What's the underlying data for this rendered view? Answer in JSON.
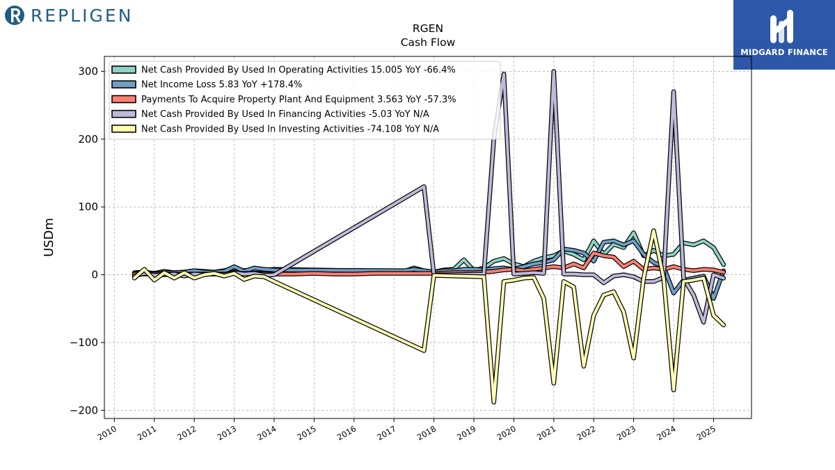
{
  "header": {
    "company_name": "REPLIGEN",
    "brand_name": "MIDGARD FINANCE"
  },
  "colors": {
    "company": "#1f5d86",
    "brand_background": "#2d57a8"
  },
  "chart_data": {
    "type": "line",
    "title": "RGEN",
    "subtitle": "Cash Flow",
    "xlabel": "",
    "ylabel": "USDm",
    "xlim": [
      2009.75,
      2025.95
    ],
    "ylim": [
      -212,
      322
    ],
    "yticks": [
      -200,
      -100,
      0,
      100,
      200,
      300
    ],
    "ytick_labels": [
      "−200",
      "−100",
      "0",
      "100",
      "200",
      "300"
    ],
    "xticks": [
      2010,
      2011,
      2012,
      2013,
      2014,
      2015,
      2016,
      2017,
      2018,
      2019,
      2020,
      2021,
      2022,
      2023,
      2024,
      2025
    ],
    "grid": true,
    "legend_position": "top-left",
    "series": [
      {
        "name": "Net Cash Provided By Used In Operating Activities",
        "legend": "Net Cash Provided By Used In Operating Activities  15.005 YoY -66.4%",
        "color": "#8dd3c7",
        "points": [
          [
            2010.5,
            3
          ],
          [
            2010.75,
            4
          ],
          [
            2011.0,
            2
          ],
          [
            2011.25,
            5
          ],
          [
            2011.5,
            3
          ],
          [
            2011.75,
            4
          ],
          [
            2012.0,
            6
          ],
          [
            2012.25,
            5
          ],
          [
            2012.5,
            4
          ],
          [
            2012.75,
            6
          ],
          [
            2013.0,
            10
          ],
          [
            2013.25,
            6
          ],
          [
            2013.5,
            8
          ],
          [
            2013.75,
            7
          ],
          [
            2014.0,
            8
          ],
          [
            2017.25,
            5
          ],
          [
            2017.5,
            10
          ],
          [
            2017.75,
            6
          ],
          [
            2018.0,
            4
          ],
          [
            2018.25,
            7
          ],
          [
            2018.5,
            8
          ],
          [
            2018.75,
            22
          ],
          [
            2019.0,
            6
          ],
          [
            2019.25,
            10
          ],
          [
            2019.5,
            20
          ],
          [
            2019.75,
            24
          ],
          [
            2020.0,
            16
          ],
          [
            2020.25,
            12
          ],
          [
            2020.5,
            20
          ],
          [
            2020.75,
            25
          ],
          [
            2021.0,
            28
          ],
          [
            2021.25,
            35
          ],
          [
            2021.5,
            30
          ],
          [
            2021.75,
            22
          ],
          [
            2022.0,
            50
          ],
          [
            2022.25,
            30
          ],
          [
            2022.5,
            45
          ],
          [
            2022.75,
            40
          ],
          [
            2023.0,
            62
          ],
          [
            2023.25,
            28
          ],
          [
            2023.5,
            36
          ],
          [
            2023.75,
            28
          ],
          [
            2024.0,
            30
          ],
          [
            2024.25,
            47
          ],
          [
            2024.5,
            44
          ],
          [
            2024.75,
            50
          ],
          [
            2025.0,
            40
          ],
          [
            2025.25,
            15.005
          ]
        ]
      },
      {
        "name": "Net Income Loss",
        "legend": "Net Income Loss  5.83 YoY +178.4%",
        "color": "#6f9fc6",
        "points": [
          [
            2010.5,
            2
          ],
          [
            2010.75,
            3
          ],
          [
            2011.0,
            2
          ],
          [
            2011.25,
            3
          ],
          [
            2011.5,
            3
          ],
          [
            2011.75,
            4
          ],
          [
            2012.0,
            6
          ],
          [
            2012.25,
            4
          ],
          [
            2012.5,
            4
          ],
          [
            2012.75,
            5
          ],
          [
            2013.0,
            12
          ],
          [
            2013.25,
            5
          ],
          [
            2013.5,
            10
          ],
          [
            2013.75,
            8
          ],
          [
            2014.0,
            7
          ],
          [
            2017.25,
            6
          ],
          [
            2017.5,
            8
          ],
          [
            2017.75,
            6
          ],
          [
            2018.0,
            4
          ],
          [
            2018.25,
            6
          ],
          [
            2018.5,
            6
          ],
          [
            2018.75,
            8
          ],
          [
            2019.0,
            8
          ],
          [
            2019.25,
            7
          ],
          [
            2019.5,
            9
          ],
          [
            2019.75,
            10
          ],
          [
            2020.0,
            8
          ],
          [
            2020.25,
            12
          ],
          [
            2020.5,
            16
          ],
          [
            2020.75,
            18
          ],
          [
            2021.0,
            22
          ],
          [
            2021.25,
            38
          ],
          [
            2021.5,
            36
          ],
          [
            2021.75,
            32
          ],
          [
            2022.0,
            20
          ],
          [
            2022.25,
            48
          ],
          [
            2022.5,
            50
          ],
          [
            2022.75,
            44
          ],
          [
            2023.0,
            50
          ],
          [
            2023.25,
            30
          ],
          [
            2023.5,
            18
          ],
          [
            2023.75,
            12
          ],
          [
            2024.0,
            -27
          ],
          [
            2024.25,
            -8
          ],
          [
            2024.5,
            -5
          ],
          [
            2024.75,
            -2
          ],
          [
            2025.0,
            -35
          ],
          [
            2025.25,
            5.83
          ]
        ]
      },
      {
        "name": "Payments To Acquire Property Plant And Equipment",
        "legend": "Payments To Acquire Property Plant And Equipment  3.563 YoY -57.3%",
        "color": "#fb8072",
        "points": [
          [
            2010.5,
            1
          ],
          [
            2010.75,
            1
          ],
          [
            2011.0,
            1
          ],
          [
            2011.25,
            1
          ],
          [
            2011.5,
            1
          ],
          [
            2011.75,
            1
          ],
          [
            2012.0,
            1
          ],
          [
            2012.25,
            1
          ],
          [
            2012.5,
            1
          ],
          [
            2012.75,
            1
          ],
          [
            2013.0,
            2
          ],
          [
            2013.25,
            2
          ],
          [
            2013.5,
            2
          ],
          [
            2013.75,
            1
          ],
          [
            2014.0,
            1
          ],
          [
            2014.5,
            1
          ],
          [
            2015.0,
            2
          ],
          [
            2015.5,
            1
          ],
          [
            2016.0,
            1
          ],
          [
            2016.5,
            2
          ],
          [
            2017.0,
            2
          ],
          [
            2017.5,
            2
          ],
          [
            2018.0,
            2
          ],
          [
            2018.5,
            3
          ],
          [
            2019.0,
            3
          ],
          [
            2019.25,
            4
          ],
          [
            2019.5,
            5
          ],
          [
            2019.75,
            7
          ],
          [
            2020.0,
            8
          ],
          [
            2020.25,
            6
          ],
          [
            2020.5,
            8
          ],
          [
            2020.75,
            10
          ],
          [
            2021.0,
            12
          ],
          [
            2021.25,
            10
          ],
          [
            2021.5,
            16
          ],
          [
            2021.75,
            10
          ],
          [
            2022.0,
            32
          ],
          [
            2022.25,
            28
          ],
          [
            2022.5,
            26
          ],
          [
            2022.75,
            12
          ],
          [
            2023.0,
            20
          ],
          [
            2023.25,
            8
          ],
          [
            2023.5,
            10
          ],
          [
            2023.75,
            8
          ],
          [
            2024.0,
            12
          ],
          [
            2024.25,
            8
          ],
          [
            2024.5,
            6
          ],
          [
            2024.75,
            8
          ],
          [
            2025.0,
            7
          ],
          [
            2025.25,
            3.563
          ]
        ]
      },
      {
        "name": "Net Cash Provided By Used In Financing Activities",
        "legend": "Net Cash Provided By Used In Financing Activities  -5.03 YoY N/A",
        "color": "#bebada",
        "points": [
          [
            2010.5,
            -2
          ],
          [
            2010.75,
            2
          ],
          [
            2011.0,
            -1
          ],
          [
            2011.25,
            0
          ],
          [
            2011.5,
            1
          ],
          [
            2011.75,
            -2
          ],
          [
            2012.0,
            1
          ],
          [
            2012.25,
            0
          ],
          [
            2012.5,
            2
          ],
          [
            2012.75,
            0
          ],
          [
            2013.0,
            3
          ],
          [
            2013.25,
            1
          ],
          [
            2013.5,
            2
          ],
          [
            2013.75,
            -1
          ],
          [
            2014.0,
            0
          ],
          [
            2017.75,
            130
          ],
          [
            2018.0,
            0
          ],
          [
            2018.25,
            0
          ],
          [
            2019.25,
            1
          ],
          [
            2019.5,
            200
          ],
          [
            2019.75,
            296
          ],
          [
            2020.0,
            1
          ],
          [
            2020.25,
            2
          ],
          [
            2020.5,
            3
          ],
          [
            2020.75,
            2
          ],
          [
            2021.0,
            300
          ],
          [
            2021.25,
            1
          ],
          [
            2021.5,
            1
          ],
          [
            2021.75,
            0
          ],
          [
            2022.0,
            0
          ],
          [
            2022.25,
            -12
          ],
          [
            2022.5,
            -2
          ],
          [
            2022.75,
            0
          ],
          [
            2023.0,
            -3
          ],
          [
            2023.25,
            -10
          ],
          [
            2023.5,
            -10
          ],
          [
            2023.75,
            -4
          ],
          [
            2024.0,
            270
          ],
          [
            2024.25,
            -5
          ],
          [
            2024.5,
            -30
          ],
          [
            2024.75,
            -70
          ],
          [
            2025.0,
            0
          ],
          [
            2025.25,
            -5.03
          ]
        ]
      },
      {
        "name": "Net Cash Provided By Used In Investing Activities",
        "legend": "Net Cash Provided By Used In Investing Activities  -74.108 YoY N/A",
        "color": "#ffffb3",
        "points": [
          [
            2010.5,
            -5
          ],
          [
            2010.75,
            8
          ],
          [
            2011.0,
            -8
          ],
          [
            2011.25,
            3
          ],
          [
            2011.5,
            -5
          ],
          [
            2011.75,
            3
          ],
          [
            2012.0,
            -5
          ],
          [
            2012.25,
            0
          ],
          [
            2012.5,
            2
          ],
          [
            2012.75,
            -2
          ],
          [
            2013.0,
            2
          ],
          [
            2013.25,
            -7
          ],
          [
            2013.5,
            -2
          ],
          [
            2013.75,
            -3
          ],
          [
            2014.0,
            -10
          ],
          [
            2017.75,
            -112
          ],
          [
            2018.0,
            -1
          ],
          [
            2019.25,
            -3
          ],
          [
            2019.5,
            -188
          ],
          [
            2019.75,
            -10
          ],
          [
            2020.0,
            -8
          ],
          [
            2020.25,
            -5
          ],
          [
            2020.5,
            -4
          ],
          [
            2020.75,
            -35
          ],
          [
            2021.0,
            -160
          ],
          [
            2021.25,
            -10
          ],
          [
            2021.5,
            -18
          ],
          [
            2021.75,
            -135
          ],
          [
            2022.0,
            -60
          ],
          [
            2022.25,
            -30
          ],
          [
            2022.5,
            -25
          ],
          [
            2022.75,
            -55
          ],
          [
            2023.0,
            -123
          ],
          [
            2023.25,
            -5
          ],
          [
            2023.5,
            65
          ],
          [
            2023.75,
            -5
          ],
          [
            2024.0,
            -170
          ],
          [
            2024.25,
            -10
          ],
          [
            2024.5,
            -8
          ],
          [
            2024.75,
            -5
          ],
          [
            2025.0,
            -60
          ],
          [
            2025.25,
            -74.108
          ]
        ]
      }
    ]
  }
}
